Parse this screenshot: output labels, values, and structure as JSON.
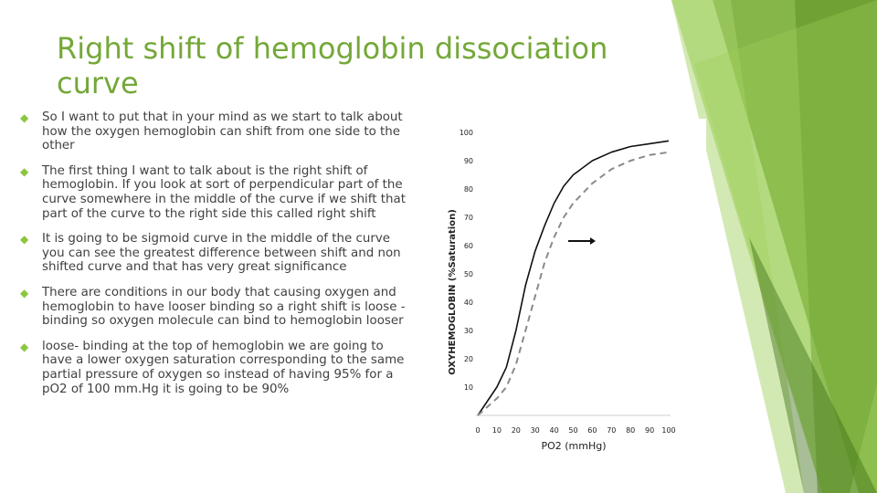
{
  "slide": {
    "title": "Right shift of hemoglobin dissociation curve",
    "bullets": [
      "So I want to put that in your mind as we start to talk about how the oxygen hemoglobin can shift from one side to the other",
      "The first thing I want to talk about is the right shift of hemoglobin. If you look at sort of perpendicular part of the curve somewhere in the middle of the curve if we shift that part of the curve to the right side this called right shift",
      "It is going to be sigmoid curve in the middle of the curve you can see  the greatest difference between shift and non shifted curve and that has very great significance",
      "There are conditions in our body that causing oxygen and hemoglobin to have looser binding so a right shift is loose - binding so oxygen molecule can bind to hemoglobin looser",
      " loose- binding at the top of hemoglobin we are going to have a lower oxygen saturation corresponding to the same partial pressure of oxygen so instead of having 95% for a pO2 of 100 mm.Hg  it is going to be 90%"
    ],
    "bullet_icon": "diamond-bullet-icon",
    "accent_color": "#8cc63f",
    "title_color": "#74a838"
  },
  "chart_data": {
    "type": "line",
    "xlabel": "PO2 (mmHg)",
    "ylabel": "OXYHEMOGLOBIN (%Saturation)",
    "x_ticks": [
      "0",
      "10",
      "20",
      "30",
      "40",
      "50",
      "60",
      "70",
      "80",
      "90",
      "100"
    ],
    "y_ticks": [
      "10",
      "20",
      "30",
      "40",
      "50",
      "60",
      "70",
      "80",
      "90",
      "100"
    ],
    "xlim": [
      0,
      100
    ],
    "ylim": [
      0,
      100
    ],
    "annotation": "arrow pointing right",
    "series": [
      {
        "style": "solid",
        "x": [
          0,
          10,
          15,
          20,
          25,
          30,
          35,
          40,
          45,
          50,
          60,
          70,
          80,
          90,
          100
        ],
        "y": [
          0,
          10,
          17,
          30,
          46,
          58,
          67,
          75,
          81,
          85,
          90,
          93,
          95,
          96,
          97
        ]
      },
      {
        "style": "dashed",
        "x": [
          0,
          10,
          15,
          20,
          25,
          30,
          35,
          40,
          45,
          50,
          60,
          70,
          80,
          90,
          100
        ],
        "y": [
          0,
          6,
          10,
          18,
          30,
          42,
          54,
          63,
          70,
          75,
          82,
          87,
          90,
          92,
          93
        ]
      }
    ]
  }
}
